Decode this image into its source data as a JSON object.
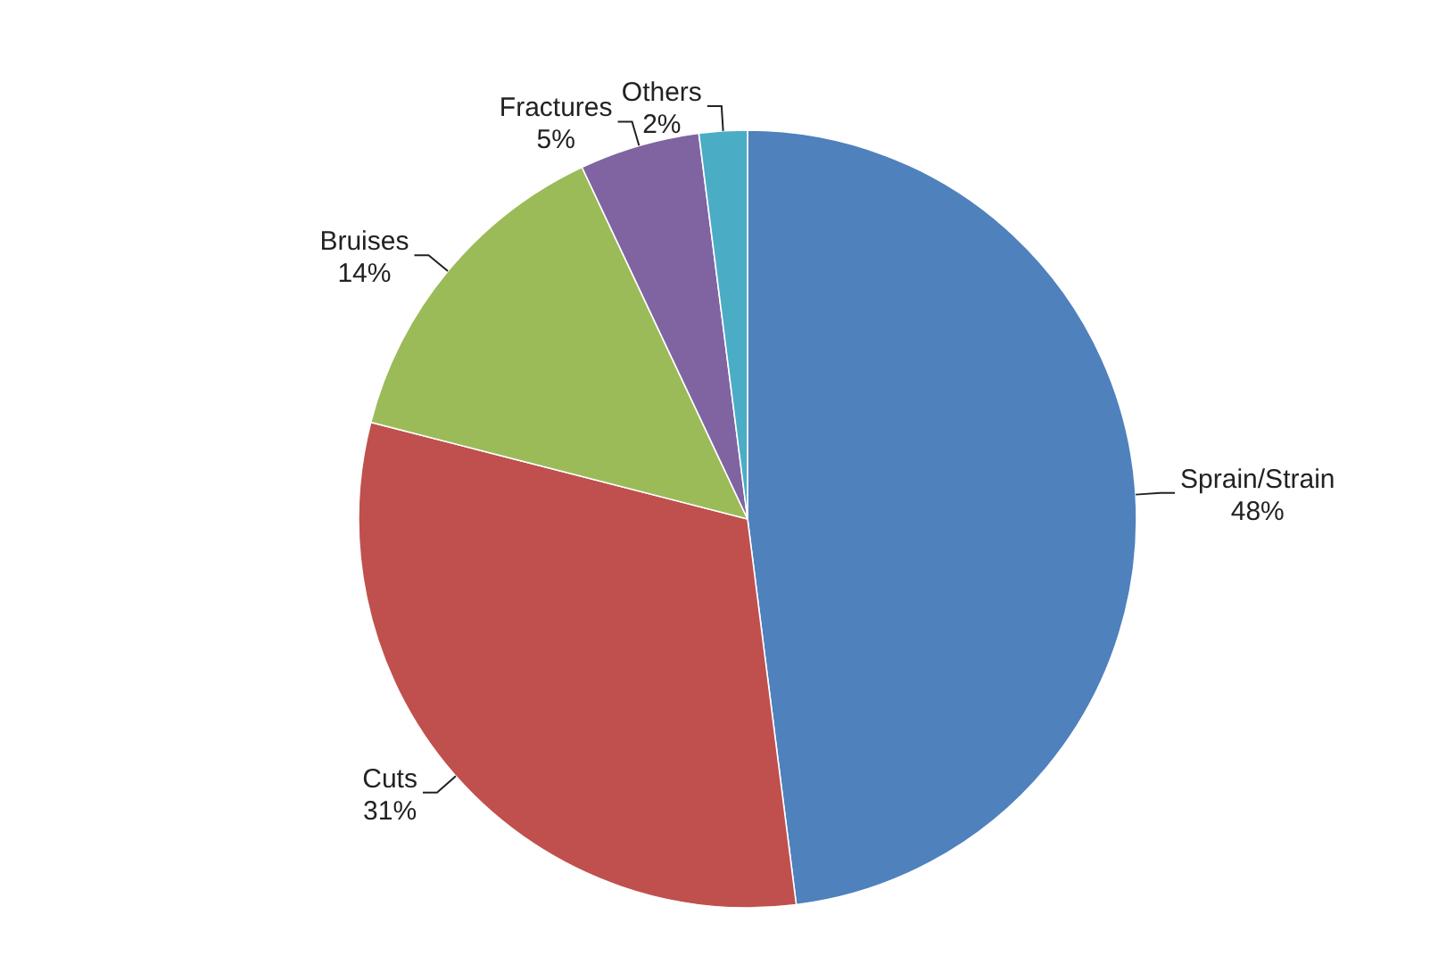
{
  "chart_data": {
    "type": "pie",
    "categories": [
      "Sprain/Strain",
      "Cuts",
      "Bruises",
      "Fractures",
      "Others"
    ],
    "values": [
      48,
      31,
      14,
      5,
      2
    ],
    "value_labels": [
      "48%",
      "31%",
      "14%",
      "5%",
      "2%"
    ],
    "colors": [
      "#4f81bd",
      "#c0504d",
      "#9bbb59",
      "#8064a2",
      "#4bacc6"
    ],
    "legend": false
  }
}
